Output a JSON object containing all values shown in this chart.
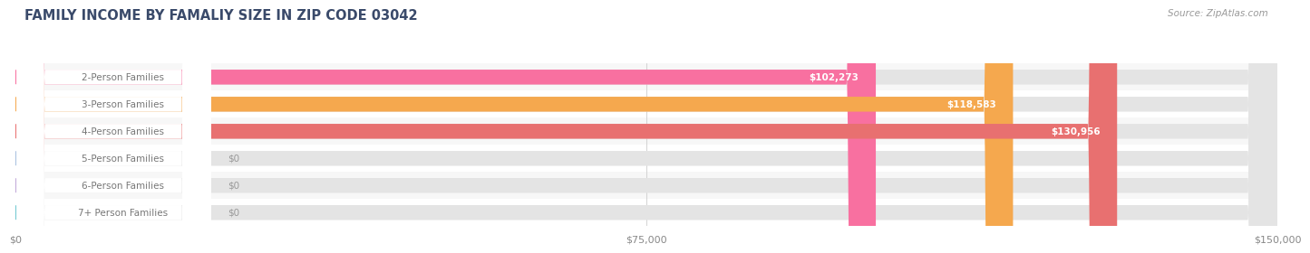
{
  "title": "FAMILY INCOME BY FAMALIY SIZE IN ZIP CODE 03042",
  "source": "Source: ZipAtlas.com",
  "categories": [
    "2-Person Families",
    "3-Person Families",
    "4-Person Families",
    "5-Person Families",
    "6-Person Families",
    "7+ Person Families"
  ],
  "values": [
    102273,
    118583,
    130956,
    0,
    0,
    0
  ],
  "bar_colors": [
    "#F870A0",
    "#F5A84E",
    "#E87070",
    "#A8C0E0",
    "#C0A8D8",
    "#70C8D0"
  ],
  "value_labels": [
    "$102,273",
    "$118,583",
    "$130,956",
    "$0",
    "$0",
    "$0"
  ],
  "xlim": [
    0,
    150000
  ],
  "xticks": [
    0,
    75000,
    150000
  ],
  "xticklabels": [
    "$0",
    "$75,000",
    "$150,000"
  ],
  "page_background": "#ffffff",
  "row_bg_odd": "#f7f7f7",
  "row_bg_even": "#ffffff",
  "bar_background_color": "#e4e4e4",
  "title_color": "#3a4a6a",
  "source_color": "#999999",
  "label_text_color": "#777777",
  "title_fontsize": 10.5,
  "source_fontsize": 7.5,
  "label_fontsize": 7.5,
  "value_fontsize": 7.5,
  "tick_fontsize": 8
}
